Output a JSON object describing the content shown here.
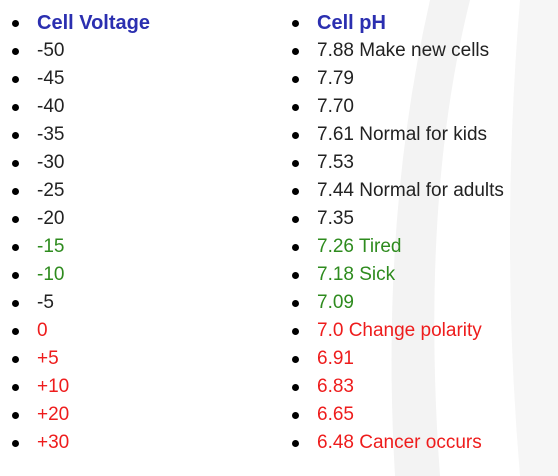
{
  "colors": {
    "heading": "#2b2fb0",
    "default": "#222222",
    "green": "#2e8b1e",
    "red": "#ee1c1c"
  },
  "left": {
    "heading": "Cell Voltage",
    "items": [
      {
        "text": "-50",
        "tone": "default"
      },
      {
        "text": "-45",
        "tone": "default"
      },
      {
        "text": "-40",
        "tone": "default"
      },
      {
        "text": "-35",
        "tone": "default"
      },
      {
        "text": "-30",
        "tone": "default"
      },
      {
        "text": "-25",
        "tone": "default"
      },
      {
        "text": "-20",
        "tone": "default"
      },
      {
        "text": "-15",
        "tone": "green"
      },
      {
        "text": "-10",
        "tone": "green"
      },
      {
        "text": "-5",
        "tone": "default"
      },
      {
        "text": "0",
        "tone": "red"
      },
      {
        "text": "+5",
        "tone": "red"
      },
      {
        "text": "+10",
        "tone": "red"
      },
      {
        "text": "+20",
        "tone": "red"
      },
      {
        "text": "+30",
        "tone": "red"
      }
    ]
  },
  "right": {
    "heading": "Cell pH",
    "items": [
      {
        "text": "7.88 Make new cells",
        "tone": "default"
      },
      {
        "text": "7.79",
        "tone": "default"
      },
      {
        "text": "7.70",
        "tone": "default"
      },
      {
        "text": "7.61 Normal for kids",
        "tone": "default"
      },
      {
        "text": "7.53",
        "tone": "default"
      },
      {
        "text": "7.44 Normal for adults",
        "tone": "default"
      },
      {
        "text": "7.35",
        "tone": "default"
      },
      {
        "text": "7.26 Tired",
        "tone": "green"
      },
      {
        "text": "7.18 Sick",
        "tone": "green"
      },
      {
        "text": "7.09",
        "tone": "green"
      },
      {
        "text": "7.0 Change polarity",
        "tone": "red"
      },
      {
        "text": "6.91",
        "tone": "red"
      },
      {
        "text": "6.83",
        "tone": "red"
      },
      {
        "text": "6.65",
        "tone": "red"
      },
      {
        "text": "6.48 Cancer occurs",
        "tone": "red"
      }
    ]
  }
}
